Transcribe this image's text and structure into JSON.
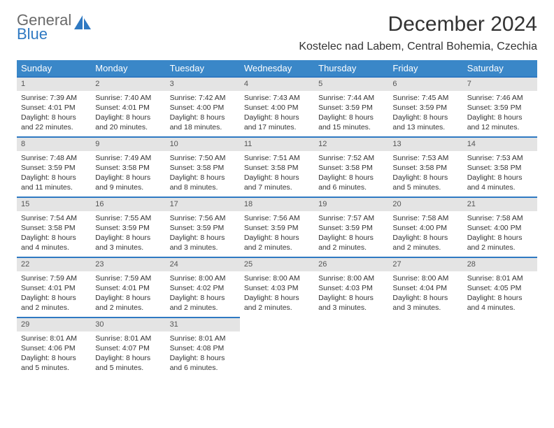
{
  "logo": {
    "line1": "General",
    "line2": "Blue"
  },
  "title": "December 2024",
  "subtitle": "Kostelec nad Labem, Central Bohemia, Czechia",
  "colors": {
    "header_bg": "#3a87c8",
    "header_text": "#ffffff",
    "daynum_bg": "#e4e4e4",
    "daynum_border": "#2f79c2",
    "text": "#333333",
    "logo_gray": "#6a6a6a",
    "logo_blue": "#2f79c2"
  },
  "weekdays": [
    "Sunday",
    "Monday",
    "Tuesday",
    "Wednesday",
    "Thursday",
    "Friday",
    "Saturday"
  ],
  "days": [
    {
      "n": "1",
      "sunrise": "7:39 AM",
      "sunset": "4:01 PM",
      "dl": "8 hours and 22 minutes."
    },
    {
      "n": "2",
      "sunrise": "7:40 AM",
      "sunset": "4:01 PM",
      "dl": "8 hours and 20 minutes."
    },
    {
      "n": "3",
      "sunrise": "7:42 AM",
      "sunset": "4:00 PM",
      "dl": "8 hours and 18 minutes."
    },
    {
      "n": "4",
      "sunrise": "7:43 AM",
      "sunset": "4:00 PM",
      "dl": "8 hours and 17 minutes."
    },
    {
      "n": "5",
      "sunrise": "7:44 AM",
      "sunset": "3:59 PM",
      "dl": "8 hours and 15 minutes."
    },
    {
      "n": "6",
      "sunrise": "7:45 AM",
      "sunset": "3:59 PM",
      "dl": "8 hours and 13 minutes."
    },
    {
      "n": "7",
      "sunrise": "7:46 AM",
      "sunset": "3:59 PM",
      "dl": "8 hours and 12 minutes."
    },
    {
      "n": "8",
      "sunrise": "7:48 AM",
      "sunset": "3:59 PM",
      "dl": "8 hours and 11 minutes."
    },
    {
      "n": "9",
      "sunrise": "7:49 AM",
      "sunset": "3:58 PM",
      "dl": "8 hours and 9 minutes."
    },
    {
      "n": "10",
      "sunrise": "7:50 AM",
      "sunset": "3:58 PM",
      "dl": "8 hours and 8 minutes."
    },
    {
      "n": "11",
      "sunrise": "7:51 AM",
      "sunset": "3:58 PM",
      "dl": "8 hours and 7 minutes."
    },
    {
      "n": "12",
      "sunrise": "7:52 AM",
      "sunset": "3:58 PM",
      "dl": "8 hours and 6 minutes."
    },
    {
      "n": "13",
      "sunrise": "7:53 AM",
      "sunset": "3:58 PM",
      "dl": "8 hours and 5 minutes."
    },
    {
      "n": "14",
      "sunrise": "7:53 AM",
      "sunset": "3:58 PM",
      "dl": "8 hours and 4 minutes."
    },
    {
      "n": "15",
      "sunrise": "7:54 AM",
      "sunset": "3:58 PM",
      "dl": "8 hours and 4 minutes."
    },
    {
      "n": "16",
      "sunrise": "7:55 AM",
      "sunset": "3:59 PM",
      "dl": "8 hours and 3 minutes."
    },
    {
      "n": "17",
      "sunrise": "7:56 AM",
      "sunset": "3:59 PM",
      "dl": "8 hours and 3 minutes."
    },
    {
      "n": "18",
      "sunrise": "7:56 AM",
      "sunset": "3:59 PM",
      "dl": "8 hours and 2 minutes."
    },
    {
      "n": "19",
      "sunrise": "7:57 AM",
      "sunset": "3:59 PM",
      "dl": "8 hours and 2 minutes."
    },
    {
      "n": "20",
      "sunrise": "7:58 AM",
      "sunset": "4:00 PM",
      "dl": "8 hours and 2 minutes."
    },
    {
      "n": "21",
      "sunrise": "7:58 AM",
      "sunset": "4:00 PM",
      "dl": "8 hours and 2 minutes."
    },
    {
      "n": "22",
      "sunrise": "7:59 AM",
      "sunset": "4:01 PM",
      "dl": "8 hours and 2 minutes."
    },
    {
      "n": "23",
      "sunrise": "7:59 AM",
      "sunset": "4:01 PM",
      "dl": "8 hours and 2 minutes."
    },
    {
      "n": "24",
      "sunrise": "8:00 AM",
      "sunset": "4:02 PM",
      "dl": "8 hours and 2 minutes."
    },
    {
      "n": "25",
      "sunrise": "8:00 AM",
      "sunset": "4:03 PM",
      "dl": "8 hours and 2 minutes."
    },
    {
      "n": "26",
      "sunrise": "8:00 AM",
      "sunset": "4:03 PM",
      "dl": "8 hours and 3 minutes."
    },
    {
      "n": "27",
      "sunrise": "8:00 AM",
      "sunset": "4:04 PM",
      "dl": "8 hours and 3 minutes."
    },
    {
      "n": "28",
      "sunrise": "8:01 AM",
      "sunset": "4:05 PM",
      "dl": "8 hours and 4 minutes."
    },
    {
      "n": "29",
      "sunrise": "8:01 AM",
      "sunset": "4:06 PM",
      "dl": "8 hours and 5 minutes."
    },
    {
      "n": "30",
      "sunrise": "8:01 AM",
      "sunset": "4:07 PM",
      "dl": "8 hours and 5 minutes."
    },
    {
      "n": "31",
      "sunrise": "8:01 AM",
      "sunset": "4:08 PM",
      "dl": "8 hours and 6 minutes."
    }
  ],
  "labels": {
    "sunrise": "Sunrise:",
    "sunset": "Sunset:",
    "daylight": "Daylight:"
  }
}
